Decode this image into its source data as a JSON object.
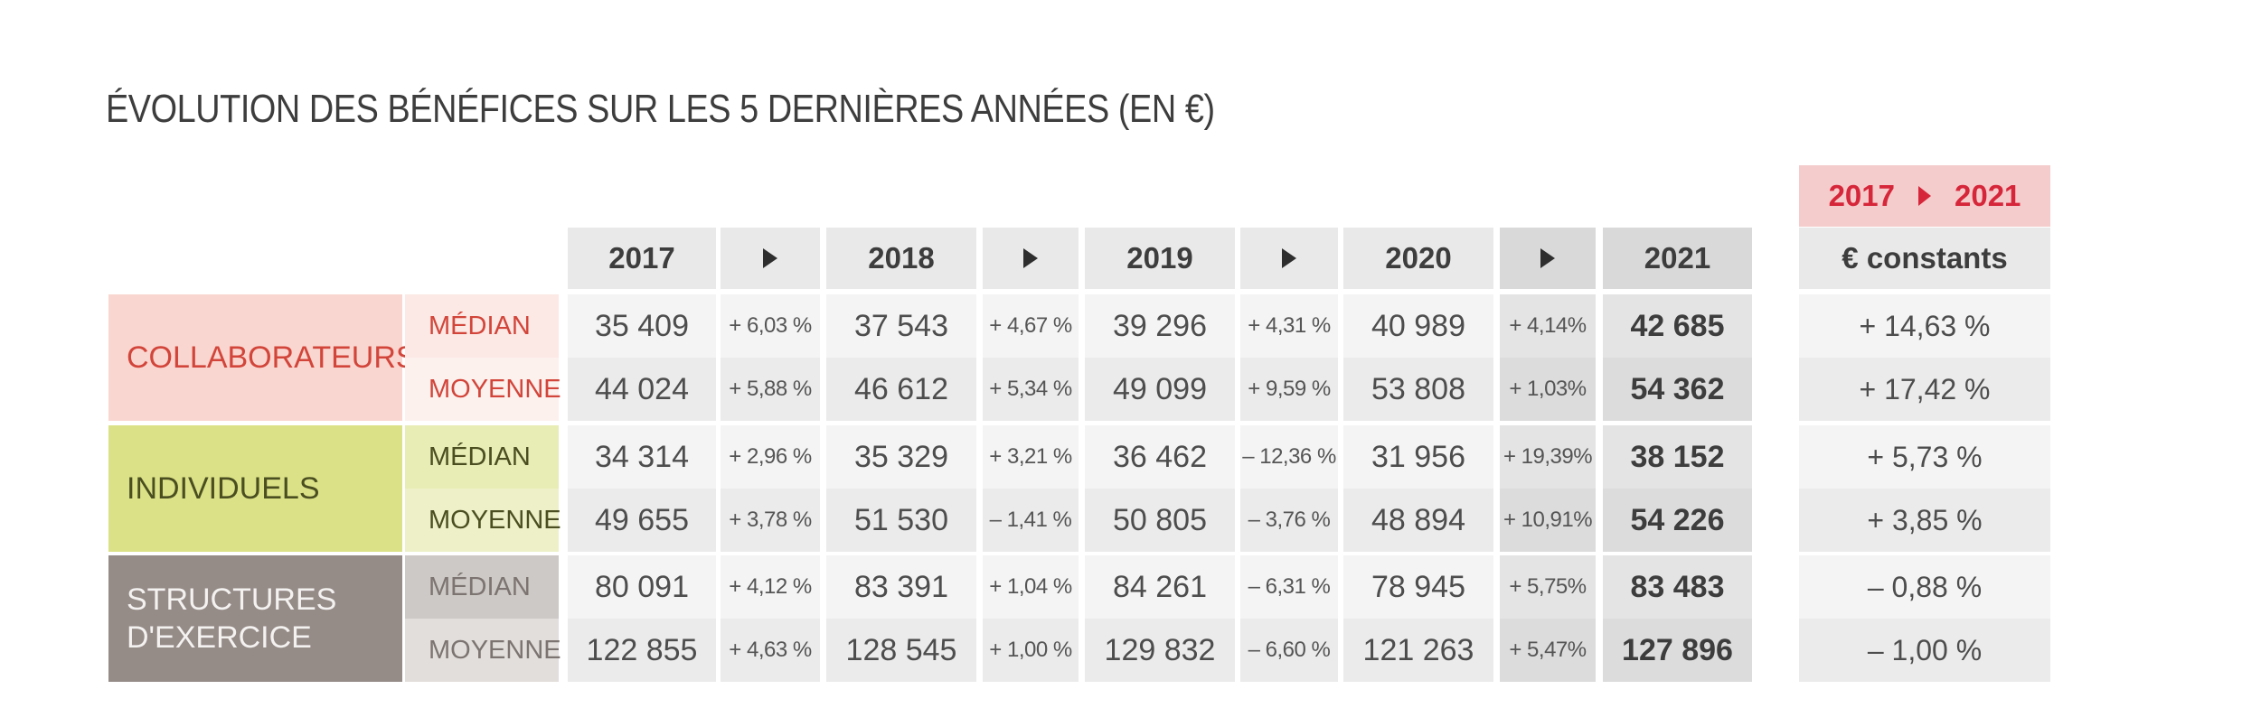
{
  "title": "ÉVOLUTION DES BÉNÉFICES SUR LES 5 DERNIÈRES ANNÉES (EN €)",
  "range_header": {
    "from": "2017",
    "to": "2021"
  },
  "constants_header": "€ constants",
  "arrow_icon": "play-triangle-icon",
  "colors": {
    "collaborateurs_bg": "#fad6d0",
    "collaborateurs_sub_bg": "#fce8e4",
    "collaborateurs_text": "#d2453a",
    "individuels_bg": "#dbe186",
    "individuels_sub_bg": "#e8ecb5",
    "individuels_text": "#4a4e20",
    "structures_bg": "#958b87",
    "structures_sub_bg": "#cdc9c6",
    "structures_text": "#f4f2f1",
    "range_bg": "#f5cccc",
    "range_text": "#d6263a"
  },
  "chart_data": {
    "type": "table",
    "title": "ÉVOLUTION DES BÉNÉFICES SUR LES 5 DERNIÈRES ANNÉES (EN €)",
    "years": [
      "2017",
      "2018",
      "2019",
      "2020",
      "2021"
    ],
    "groups": [
      {
        "name": "COLLABORATEURS",
        "rows": [
          {
            "label": "MÉDIAN",
            "values": [
              "35 409",
              "37 543",
              "39 296",
              "40 989",
              "42 685"
            ],
            "changes": [
              "+ 6,03 %",
              "+ 4,67 %",
              "+ 4,31 %",
              "+ 4,14%"
            ],
            "evolution": "+ 14,63 %"
          },
          {
            "label": "MOYENNE",
            "values": [
              "44 024",
              "46 612",
              "49 099",
              "53 808",
              "54 362"
            ],
            "changes": [
              "+ 5,88 %",
              "+ 5,34 %",
              "+ 9,59 %",
              "+ 1,03%"
            ],
            "evolution": "+ 17,42 %"
          }
        ]
      },
      {
        "name": "INDIVIDUELS",
        "rows": [
          {
            "label": "MÉDIAN",
            "values": [
              "34 314",
              "35 329",
              "36 462",
              "31 956",
              "38 152"
            ],
            "changes": [
              "+ 2,96 %",
              "+ 3,21 %",
              "– 12,36 %",
              "+ 19,39%"
            ],
            "evolution": "+ 5,73 %"
          },
          {
            "label": "MOYENNE",
            "values": [
              "49 655",
              "51 530",
              "50 805",
              "48 894",
              "54 226"
            ],
            "changes": [
              "+ 3,78 %",
              "– 1,41 %",
              "– 3,76 %",
              "+ 10,91%"
            ],
            "evolution": "+ 3,85 %"
          }
        ]
      },
      {
        "name": "STRUCTURES D'EXERCICE",
        "rows": [
          {
            "label": "MÉDIAN",
            "values": [
              "80 091",
              "83 391",
              "84 261",
              "78 945",
              "83 483"
            ],
            "changes": [
              "+ 4,12 %",
              "+ 1,04 %",
              "– 6,31 %",
              "+ 5,75%"
            ],
            "evolution": "– 0,88 %"
          },
          {
            "label": "MOYENNE",
            "values": [
              "122 855",
              "128 545",
              "129 832",
              "121 263",
              "127 896"
            ],
            "changes": [
              "+ 4,63 %",
              "+ 1,00 %",
              "– 6,60 %",
              "+ 5,47%"
            ],
            "evolution": "– 1,00 %"
          }
        ]
      }
    ]
  }
}
